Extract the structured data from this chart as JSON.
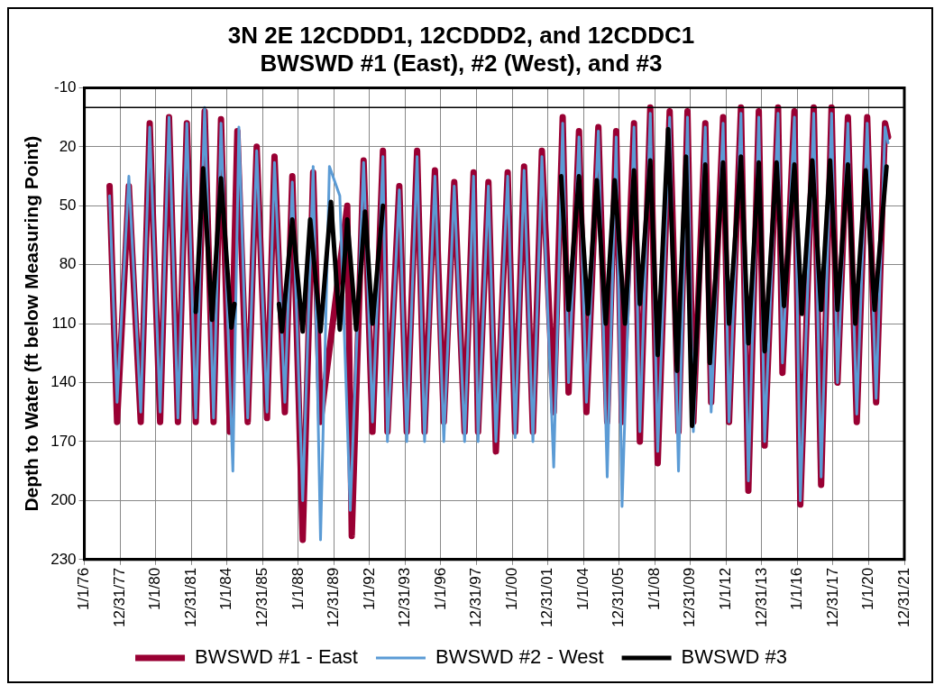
{
  "chart_data": {
    "type": "line",
    "title": [
      "3N 2E 12CDDD1, 12CDDD2, and 12CDDC1",
      "BWSWD #1 (East), #2 (West), and #3"
    ],
    "ylabel": "Depth to Water (ft below Measuring Point)",
    "xlim": [
      "1976-01-01",
      "2021-12-31"
    ],
    "xticks": [
      {
        "value": "1976-01-01",
        "label": "1/1/76"
      },
      {
        "value": "1977-12-31",
        "label": "12/31/77"
      },
      {
        "value": "1980-01-01",
        "label": "1/1/80"
      },
      {
        "value": "1981-12-31",
        "label": "12/31/81"
      },
      {
        "value": "1984-01-01",
        "label": "1/1/84"
      },
      {
        "value": "1985-12-31",
        "label": "12/31/85"
      },
      {
        "value": "1988-01-01",
        "label": "1/1/88"
      },
      {
        "value": "1989-12-31",
        "label": "12/31/89"
      },
      {
        "value": "1992-01-01",
        "label": "1/1/92"
      },
      {
        "value": "1993-12-31",
        "label": "12/31/93"
      },
      {
        "value": "1996-01-01",
        "label": "1/1/96"
      },
      {
        "value": "1997-12-31",
        "label": "12/31/97"
      },
      {
        "value": "2000-01-01",
        "label": "1/1/00"
      },
      {
        "value": "2001-12-31",
        "label": "12/31/01"
      },
      {
        "value": "2004-01-01",
        "label": "1/1/04"
      },
      {
        "value": "2005-12-31",
        "label": "12/31/05"
      },
      {
        "value": "2008-01-01",
        "label": "1/1/08"
      },
      {
        "value": "2009-12-31",
        "label": "12/31/09"
      },
      {
        "value": "2012-01-01",
        "label": "1/1/12"
      },
      {
        "value": "2013-12-31",
        "label": "12/31/13"
      },
      {
        "value": "2016-01-01",
        "label": "1/1/16"
      },
      {
        "value": "2017-12-31",
        "label": "12/31/17"
      },
      {
        "value": "2020-01-01",
        "label": "1/1/20"
      },
      {
        "value": "2021-12-31",
        "label": "12/31/21"
      }
    ],
    "ylim": [
      230,
      -10
    ],
    "yticks": [
      -10,
      20,
      50,
      80,
      110,
      140,
      170,
      200,
      230
    ],
    "grid": true,
    "legend": "bottom",
    "marker": "none",
    "line_style": "solid",
    "ref_lines": [
      {
        "axis": "y",
        "value": 0,
        "color": "#000000"
      }
    ],
    "series": [
      {
        "name": "BWSWD #1 - East",
        "color": "#990033",
        "x": [
          "1977-06",
          "1977-11",
          "1978-07",
          "1979-03",
          "1979-09",
          "1980-04",
          "1980-10",
          "1981-04",
          "1981-10",
          "1982-04",
          "1982-10",
          "1983-04",
          "1983-09",
          "1984-03",
          "1984-08",
          "1985-03",
          "1985-09",
          "1986-04",
          "1986-09",
          "1987-04",
          "1987-09",
          "1988-04",
          "1988-11",
          "1989-04",
          "1990-10",
          "1991-01",
          "1991-09",
          "1992-03",
          "1992-10",
          "1993-01",
          "1993-09",
          "1994-02",
          "1994-09",
          "1995-02",
          "1995-09",
          "1996-03",
          "1996-10",
          "1997-05",
          "1997-11",
          "1998-02",
          "1998-09",
          "1999-02",
          "1999-10",
          "2000-03",
          "2000-09",
          "2001-03",
          "2001-09",
          "2002-05",
          "2002-11",
          "2003-03",
          "2003-10",
          "2004-03",
          "2004-11",
          "2005-05",
          "2005-11",
          "2006-03",
          "2006-11",
          "2007-03",
          "2007-10",
          "2008-03",
          "2008-11",
          "2009-05",
          "2009-11",
          "2010-03",
          "2010-11",
          "2011-03",
          "2011-11",
          "2012-03",
          "2012-11",
          "2013-04",
          "2013-11",
          "2014-03",
          "2014-12",
          "2015-03",
          "2015-11",
          "2016-03",
          "2016-12",
          "2017-05",
          "2017-12",
          "2018-04",
          "2018-11",
          "2019-05",
          "2019-12",
          "2020-06",
          "2020-12",
          "2021-02"
        ],
        "values": [
          40,
          160,
          40,
          160,
          8,
          160,
          5,
          160,
          8,
          160,
          2,
          160,
          6,
          165,
          12,
          160,
          20,
          158,
          25,
          155,
          35,
          220,
          33,
          160,
          50,
          218,
          27,
          165,
          22,
          165,
          40,
          165,
          22,
          165,
          32,
          160,
          38,
          165,
          33,
          165,
          38,
          175,
          33,
          165,
          30,
          165,
          22,
          155,
          5,
          145,
          12,
          155,
          10,
          160,
          12,
          160,
          8,
          170,
          0,
          181,
          2,
          165,
          2,
          160,
          8,
          150,
          5,
          160,
          0,
          195,
          2,
          172,
          0,
          135,
          2,
          202,
          0,
          192,
          0,
          140,
          5,
          160,
          5,
          150,
          8,
          15
        ]
      },
      {
        "name": "BWSWD #2 - West",
        "color": "#5b9bd5",
        "x": [
          "1977-06",
          "1977-11",
          "1978-07",
          "1979-03",
          "1979-09",
          "1980-04",
          "1980-10",
          "1981-04",
          "1981-10",
          "1982-04",
          "1982-10",
          "1983-04",
          "1983-09",
          "1984-05",
          "1984-09",
          "1985-03",
          "1985-09",
          "1986-04",
          "1986-09",
          "1987-04",
          "1987-09",
          "1988-04",
          "1988-11",
          "1989-04",
          "1989-10",
          "1990-05",
          "1990-12",
          "1991-09",
          "1992-03",
          "1992-10",
          "1993-01",
          "1993-09",
          "1994-02",
          "1994-09",
          "1995-02",
          "1995-09",
          "1996-03",
          "1996-10",
          "1997-05",
          "1997-11",
          "1998-02",
          "1998-09",
          "1999-02",
          "1999-10",
          "2000-03",
          "2000-09",
          "2001-03",
          "2001-09",
          "2002-05",
          "2002-11",
          "2003-03",
          "2003-10",
          "2004-03",
          "2004-11",
          "2005-05",
          "2005-11",
          "2006-03",
          "2006-11",
          "2007-03",
          "2007-10",
          "2008-03",
          "2008-11",
          "2009-05",
          "2009-11",
          "2010-03",
          "2010-11",
          "2011-03",
          "2011-11",
          "2012-03",
          "2012-11",
          "2013-04",
          "2013-11",
          "2014-03",
          "2014-12",
          "2015-03",
          "2015-11",
          "2016-03",
          "2016-12",
          "2017-05",
          "2017-12",
          "2018-04",
          "2018-11",
          "2019-05",
          "2019-12",
          "2020-06",
          "2020-12",
          "2021-02"
        ],
        "values": [
          45,
          150,
          35,
          155,
          10,
          155,
          5,
          158,
          8,
          158,
          0,
          158,
          8,
          185,
          10,
          158,
          22,
          155,
          28,
          150,
          38,
          200,
          30,
          220,
          30,
          45,
          205,
          28,
          160,
          25,
          170,
          42,
          170,
          25,
          170,
          35,
          170,
          40,
          170,
          35,
          170,
          40,
          170,
          35,
          168,
          32,
          170,
          25,
          183,
          8,
          140,
          15,
          150,
          12,
          188,
          15,
          203,
          10,
          165,
          3,
          175,
          5,
          185,
          5,
          165,
          10,
          155,
          8,
          160,
          3,
          190,
          5,
          170,
          3,
          130,
          5,
          200,
          3,
          188,
          3,
          140,
          8,
          156,
          8,
          148,
          10,
          18
        ]
      },
      {
        "name": "BWSWD #3",
        "color": "#000000",
        "x": [
          "1982-04",
          "1982-09",
          "1983-03",
          "1983-09",
          "1984-04",
          "1984-06",
          "1985-06",
          "1986-12",
          "1987-02",
          "1987-09",
          "1988-04",
          "1988-09",
          "1989-04",
          "1989-11",
          "1990-05",
          "1990-10",
          "1991-04",
          "1991-10",
          "1992-03",
          "1992-10",
          "1997-01",
          "2002-10",
          "2003-03",
          "2003-10",
          "2004-04",
          "2004-10",
          "2005-04",
          "2005-10",
          "2006-05",
          "2006-11",
          "2007-03",
          "2007-10",
          "2008-03",
          "2008-10",
          "2009-04",
          "2009-10",
          "2010-02",
          "2010-11",
          "2011-02",
          "2011-11",
          "2012-03",
          "2012-11",
          "2013-04",
          "2013-11",
          "2014-03",
          "2014-11",
          "2015-04",
          "2015-11",
          "2016-04",
          "2016-11",
          "2017-05",
          "2017-11",
          "2018-04",
          "2018-11",
          "2019-04",
          "2019-11",
          "2020-05",
          "2021-01"
        ],
        "values": [
          104,
          31,
          108,
          36,
          112,
          100,
          null,
          100,
          114,
          57,
          114,
          57,
          114,
          48,
          113,
          57,
          113,
          53,
          110,
          50,
          null,
          35,
          103,
          35,
          105,
          37,
          110,
          37,
          110,
          32,
          100,
          27,
          126,
          11,
          134,
          25,
          162,
          29,
          130,
          28,
          110,
          25,
          120,
          28,
          124,
          28,
          101,
          29,
          105,
          27,
          103,
          27,
          103,
          29,
          110,
          32,
          103,
          30
        ]
      }
    ]
  }
}
